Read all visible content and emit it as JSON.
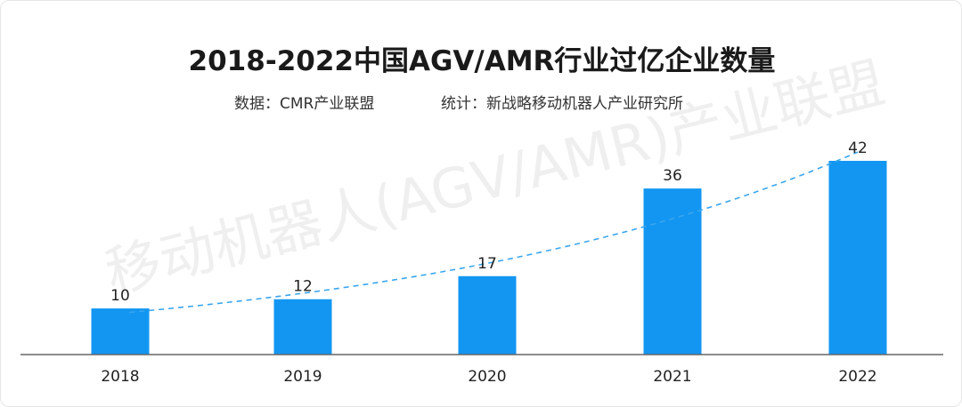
{
  "watermark": "移动机器人(AGV/AMR)产业联盟",
  "source_line": {
    "data_label": "数据：CMR产业联盟",
    "stats_label": "统计：新战略移动机器人产业研究所"
  },
  "chart_data": {
    "type": "bar",
    "title": "2018-2022中国AGV/AMR行业过亿企业数量",
    "categories": [
      "2018",
      "2019",
      "2020",
      "2021",
      "2022"
    ],
    "values": [
      10,
      12,
      17,
      36,
      42
    ],
    "data_labels": [
      "10",
      "12",
      "17",
      "36",
      "42"
    ],
    "ylim": [
      0,
      50
    ],
    "grid": false,
    "legend": "none",
    "trendline": "dashed exponential",
    "bar_color": "#1296f2",
    "trend_color": "#3aa6ee",
    "axis_color": "#666666"
  }
}
